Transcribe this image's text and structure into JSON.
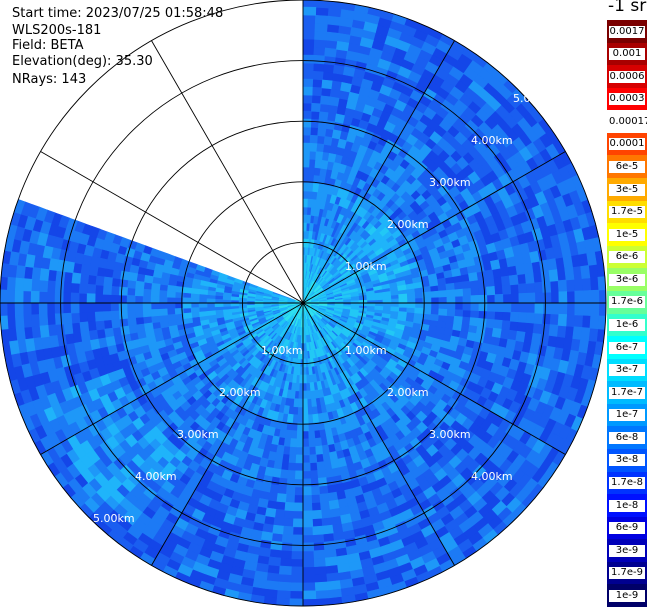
{
  "info": {
    "start_time": "Start time: 2023/07/25 01:58:48",
    "instrument": "WLS200s-181",
    "field": "Field: BETA",
    "elevation": "Elevation(deg): 35.30",
    "nrays": "NRays: 143"
  },
  "colorbar": {
    "title": "-1 sr",
    "entries": [
      {
        "label": "0.0017",
        "color": "#7a0000"
      },
      {
        "label": "0.001",
        "color": "#a80000"
      },
      {
        "label": "0.0006",
        "color": "#d60000"
      },
      {
        "label": "0.0003",
        "color": "#ff0000"
      },
      {
        "label": "0.00017",
        "color": "#ffffff"
      },
      {
        "label": "0.0001",
        "color": "#ff4400"
      },
      {
        "label": "6e-5",
        "color": "#ff7700"
      },
      {
        "label": "3e-5",
        "color": "#ffaa00"
      },
      {
        "label": "1.7e-5",
        "color": "#ffdd00"
      },
      {
        "label": "1e-5",
        "color": "#ffff00"
      },
      {
        "label": "6e-6",
        "color": "#ccff33"
      },
      {
        "label": "3e-6",
        "color": "#99ff66"
      },
      {
        "label": "1.7e-6",
        "color": "#66ff99"
      },
      {
        "label": "1e-6",
        "color": "#33ffcc"
      },
      {
        "label": "6e-7",
        "color": "#00ffff"
      },
      {
        "label": "3e-7",
        "color": "#00ddff"
      },
      {
        "label": "1.7e-7",
        "color": "#00bbff"
      },
      {
        "label": "1e-7",
        "color": "#0099ff"
      },
      {
        "label": "6e-8",
        "color": "#0077ff"
      },
      {
        "label": "3e-8",
        "color": "#0055ff"
      },
      {
        "label": "1.7e-8",
        "color": "#0033ff"
      },
      {
        "label": "1e-8",
        "color": "#0011ff"
      },
      {
        "label": "6e-9",
        "color": "#0000e0"
      },
      {
        "label": "3e-9",
        "color": "#0000b8"
      },
      {
        "label": "1.7e-9",
        "color": "#000090"
      },
      {
        "label": "1e-9",
        "color": "#000068"
      }
    ]
  },
  "range_labels": {
    "r1": "1.00km",
    "r2": "2.00km",
    "r3": "3.00km",
    "r4": "4.00km",
    "r5": "5.00km",
    "r5_clipped": "5.0"
  },
  "plot": {
    "max_range_km": 5.0,
    "ring_step_km": 1.0,
    "spoke_step_deg": 30,
    "missing_sector_azimuth_deg": [
      0,
      288
    ],
    "palette": [
      "#0a2bd6",
      "#1446e8",
      "#1a5ef0",
      "#1c7af5",
      "#1e98f8",
      "#1fb4fa",
      "#22c8f5",
      "#2fe0ee",
      "#4ff0d8"
    ]
  }
}
